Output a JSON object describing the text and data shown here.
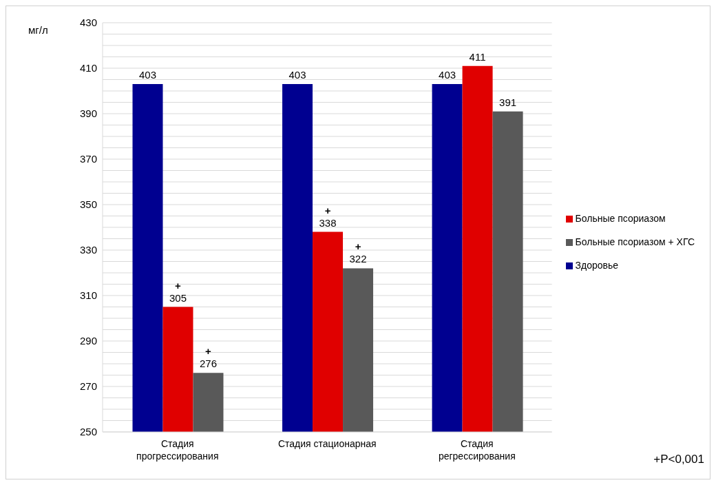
{
  "chart_data": {
    "type": "bar",
    "ylabel": "мг/л",
    "categories": [
      "Стадия прогрессирования",
      "Стадия стационарная",
      "Стадия регрессирования"
    ],
    "series": [
      {
        "name": "Здоровье",
        "color": "#000090",
        "values": [
          403,
          403,
          403
        ],
        "value_labels": [
          "403",
          "403",
          "403"
        ]
      },
      {
        "name": "Больные псориазом",
        "color": "#e00000",
        "values": [
          305,
          338,
          411
        ],
        "value_labels": [
          "+\n305",
          "+\n338",
          "411"
        ]
      },
      {
        "name": "Больные псориазом + ХГС",
        "color": "#595959",
        "values": [
          276,
          322,
          391
        ],
        "value_labels": [
          "+\n276",
          "+\n322",
          "391"
        ]
      }
    ],
    "ylim": [
      250,
      430
    ],
    "yticks": [
      250,
      {
        "value": 255,
        "label": null
      },
      {
        "value": 260,
        "label": null
      },
      {
        "value": 265,
        "label": null
      },
      270,
      {
        "value": 275,
        "label": null
      },
      {
        "value": 280,
        "label": null
      },
      {
        "value": 285,
        "label": null
      },
      290,
      {
        "value": 295,
        "label": null
      },
      {
        "value": 300,
        "label": null
      },
      {
        "value": 305,
        "label": null
      },
      310,
      {
        "value": 315,
        "label": null
      },
      {
        "value": 320,
        "label": null
      },
      {
        "value": 325,
        "label": null
      },
      330,
      {
        "value": 335,
        "label": null
      },
      {
        "value": 340,
        "label": null
      },
      {
        "value": 345,
        "label": null
      },
      350,
      {
        "value": 355,
        "label": null
      },
      {
        "value": 360,
        "label": null
      },
      {
        "value": 365,
        "label": null
      },
      370,
      {
        "value": 375,
        "label": null
      },
      {
        "value": 380,
        "label": null
      },
      {
        "value": 385,
        "label": null
      },
      390,
      {
        "value": 395,
        "label": null
      },
      {
        "value": 400,
        "label": null
      },
      {
        "value": 405,
        "label": null
      },
      410,
      {
        "value": 415,
        "label": null
      },
      {
        "value": 420,
        "label": null
      },
      {
        "value": 425,
        "label": null
      },
      430
    ],
    "grid": "y",
    "legend": "right",
    "annotations": [
      "+P<0,001"
    ]
  }
}
